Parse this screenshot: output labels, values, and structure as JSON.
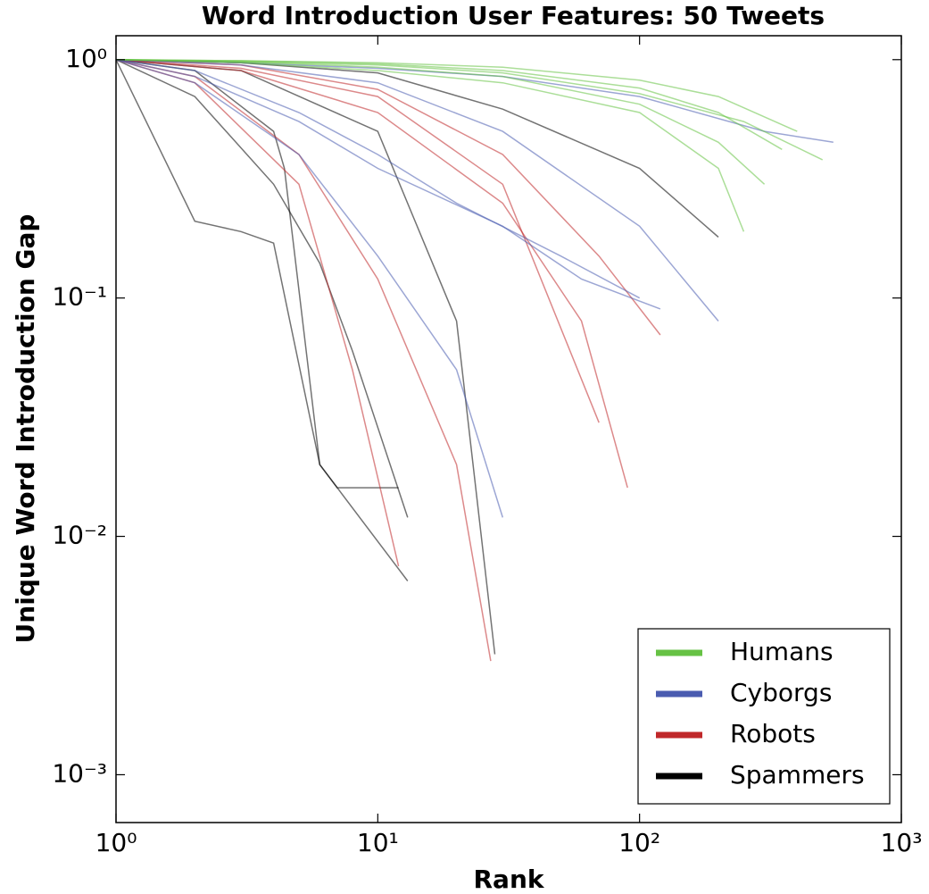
{
  "chart_data": {
    "type": "line",
    "title": "Word Introduction User Features: 50 Tweets",
    "xlabel": "Rank",
    "ylabel": "Unique Word Introduction Gap",
    "xscale": "log",
    "yscale": "log",
    "xlim": [
      1,
      1000
    ],
    "ylim": [
      0.00063,
      1.26
    ],
    "xticks": [
      {
        "value": 1,
        "label": "10⁰"
      },
      {
        "value": 10,
        "label": "10¹"
      },
      {
        "value": 100,
        "label": "10²"
      },
      {
        "value": 1000,
        "label": "10³"
      }
    ],
    "yticks": [
      {
        "value": 0.001,
        "label": "10⁻³"
      },
      {
        "value": 0.01,
        "label": "10⁻²"
      },
      {
        "value": 0.1,
        "label": "10⁻¹"
      },
      {
        "value": 1,
        "label": "10⁰"
      }
    ],
    "legend": "lower right",
    "series": [
      {
        "name": "Humans",
        "color": "#66c244",
        "lines": [
          {
            "x": [
              1,
              3,
              10,
              30,
              100,
              200,
              400
            ],
            "values": [
              1,
              0.99,
              0.97,
              0.93,
              0.82,
              0.7,
              0.5
            ]
          },
          {
            "x": [
              1,
              3,
              10,
              30,
              100,
              250,
              500
            ],
            "values": [
              1,
              0.98,
              0.95,
              0.88,
              0.72,
              0.55,
              0.38
            ]
          },
          {
            "x": [
              1,
              3,
              10,
              30,
              100,
              200,
              300
            ],
            "values": [
              1,
              0.98,
              0.93,
              0.85,
              0.65,
              0.45,
              0.3
            ]
          },
          {
            "x": [
              1,
              3,
              10,
              30,
              100,
              200,
              250
            ],
            "values": [
              1,
              0.97,
              0.9,
              0.8,
              0.6,
              0.35,
              0.19
            ]
          },
          {
            "x": [
              1,
              3,
              10,
              30,
              100,
              200,
              350
            ],
            "values": [
              1,
              0.99,
              0.96,
              0.9,
              0.76,
              0.6,
              0.42
            ]
          }
        ]
      },
      {
        "name": "Cyborgs",
        "color": "#4a5cb0",
        "lines": [
          {
            "x": [
              1,
              3,
              10,
              30,
              100,
              300,
              550
            ],
            "values": [
              1,
              0.97,
              0.92,
              0.85,
              0.7,
              0.5,
              0.45
            ]
          },
          {
            "x": [
              1,
              2,
              5,
              10,
              20,
              50,
              100
            ],
            "values": [
              1,
              0.9,
              0.6,
              0.4,
              0.25,
              0.15,
              0.1
            ]
          },
          {
            "x": [
              1,
              2,
              5,
              10,
              20,
              30
            ],
            "values": [
              1,
              0.8,
              0.4,
              0.15,
              0.05,
              0.012
            ]
          },
          {
            "x": [
              1,
              3,
              10,
              30,
              100,
              200
            ],
            "values": [
              1,
              0.95,
              0.8,
              0.5,
              0.2,
              0.08
            ]
          },
          {
            "x": [
              1,
              2,
              5,
              10,
              30,
              60,
              120
            ],
            "values": [
              1,
              0.85,
              0.55,
              0.35,
              0.2,
              0.12,
              0.09
            ]
          }
        ]
      },
      {
        "name": "Robots",
        "color": "#c0282a",
        "lines": [
          {
            "x": [
              1,
              3,
              10,
              30,
              60,
              90
            ],
            "values": [
              1,
              0.9,
              0.6,
              0.25,
              0.08,
              0.016
            ]
          },
          {
            "x": [
              1,
              2,
              5,
              10,
              20,
              27
            ],
            "values": [
              1,
              0.85,
              0.4,
              0.12,
              0.02,
              0.003
            ]
          },
          {
            "x": [
              1,
              3,
              10,
              30,
              70
            ],
            "values": [
              1,
              0.92,
              0.7,
              0.3,
              0.03
            ]
          },
          {
            "x": [
              1,
              2,
              5,
              8,
              12
            ],
            "values": [
              1,
              0.8,
              0.3,
              0.05,
              0.0075
            ]
          },
          {
            "x": [
              1,
              3,
              10,
              30,
              70,
              120
            ],
            "values": [
              1,
              0.95,
              0.75,
              0.4,
              0.15,
              0.07
            ]
          }
        ]
      },
      {
        "name": "Spammers",
        "color": "#000000",
        "lines": [
          {
            "x": [
              1,
              2,
              3,
              4,
              6,
              7,
              12
            ],
            "values": [
              1,
              0.21,
              0.19,
              0.17,
              0.02,
              0.016,
              0.016
            ]
          },
          {
            "x": [
              1,
              2,
              4,
              6,
              8,
              13
            ],
            "values": [
              1,
              0.7,
              0.3,
              0.14,
              0.06,
              0.012
            ]
          },
          {
            "x": [
              1,
              3,
              10,
              30,
              100,
              200
            ],
            "values": [
              1,
              0.97,
              0.88,
              0.62,
              0.35,
              0.18
            ]
          },
          {
            "x": [
              1,
              3,
              10,
              20,
              28
            ],
            "values": [
              1,
              0.9,
              0.5,
              0.08,
              0.0032
            ]
          },
          {
            "x": [
              1,
              2,
              4,
              4.4,
              6,
              13
            ],
            "values": [
              1,
              0.9,
              0.5,
              0.35,
              0.02,
              0.0065
            ]
          }
        ]
      }
    ]
  }
}
